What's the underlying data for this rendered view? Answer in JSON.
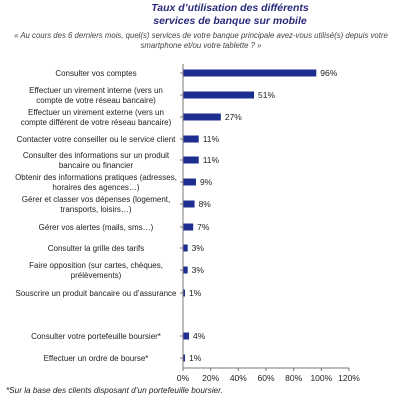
{
  "title": "Taux d’utilisation des différents services de banque sur mobile",
  "question": "« Au cours des 6 derniers mois, quel(s) services de votre banque principale avez-vous utilisé(s) depuis votre smartphone et/ou votre tablette ? »",
  "footnote": "*Sur la base des clients disposant d’un portefeuille boursier.",
  "colors": {
    "bar": "#1c2f91",
    "axis": "#7a7a7a"
  },
  "chart_data": {
    "type": "bar",
    "orientation": "horizontal",
    "categories": [
      [
        "Consulter vos comptes"
      ],
      [
        "Effectuer un virement interne (vers un",
        "compte de votre réseau bancaire)"
      ],
      [
        "Effectuer un virement externe (vers un",
        "compte différent de votre réseau bancaire)"
      ],
      [
        "Contacter votre conseiller ou le service client"
      ],
      [
        "Consulter des informations sur un produit",
        "bancaire ou financier"
      ],
      [
        "Obtenir des informations pratiques (adresses,",
        "horaires des agences…)"
      ],
      [
        "Gérer et classer vos dépenses (logement,",
        "transports, loisirs…)"
      ],
      [
        "Gérer vos alertes (mails, sms…)"
      ],
      [
        "Consulter la grille des tarifs"
      ],
      [
        "Faire opposition (sur cartes, chèques,",
        "prélèvements)"
      ],
      [
        "Souscrire un produit bancaire ou d’assurance"
      ],
      [
        "Consulter votre portefeuille boursier*"
      ],
      [
        "Effectuer un ordre de bourse*"
      ]
    ],
    "values": [
      96,
      51,
      27,
      11,
      11,
      9,
      8,
      7,
      3,
      3,
      1,
      4,
      1
    ],
    "value_labels": [
      "96%",
      "51%",
      "27%",
      "11%",
      "11%",
      "9%",
      "8%",
      "7%",
      "3%",
      "3%",
      "1%",
      "4%",
      "1%"
    ],
    "xlim": [
      0,
      120
    ],
    "ticks": [
      0,
      20,
      40,
      60,
      80,
      100,
      120
    ],
    "tick_labels": [
      "0%",
      "20%",
      "40%",
      "60%",
      "80%",
      "100%",
      "120%"
    ],
    "grid": false,
    "legend": "none"
  }
}
